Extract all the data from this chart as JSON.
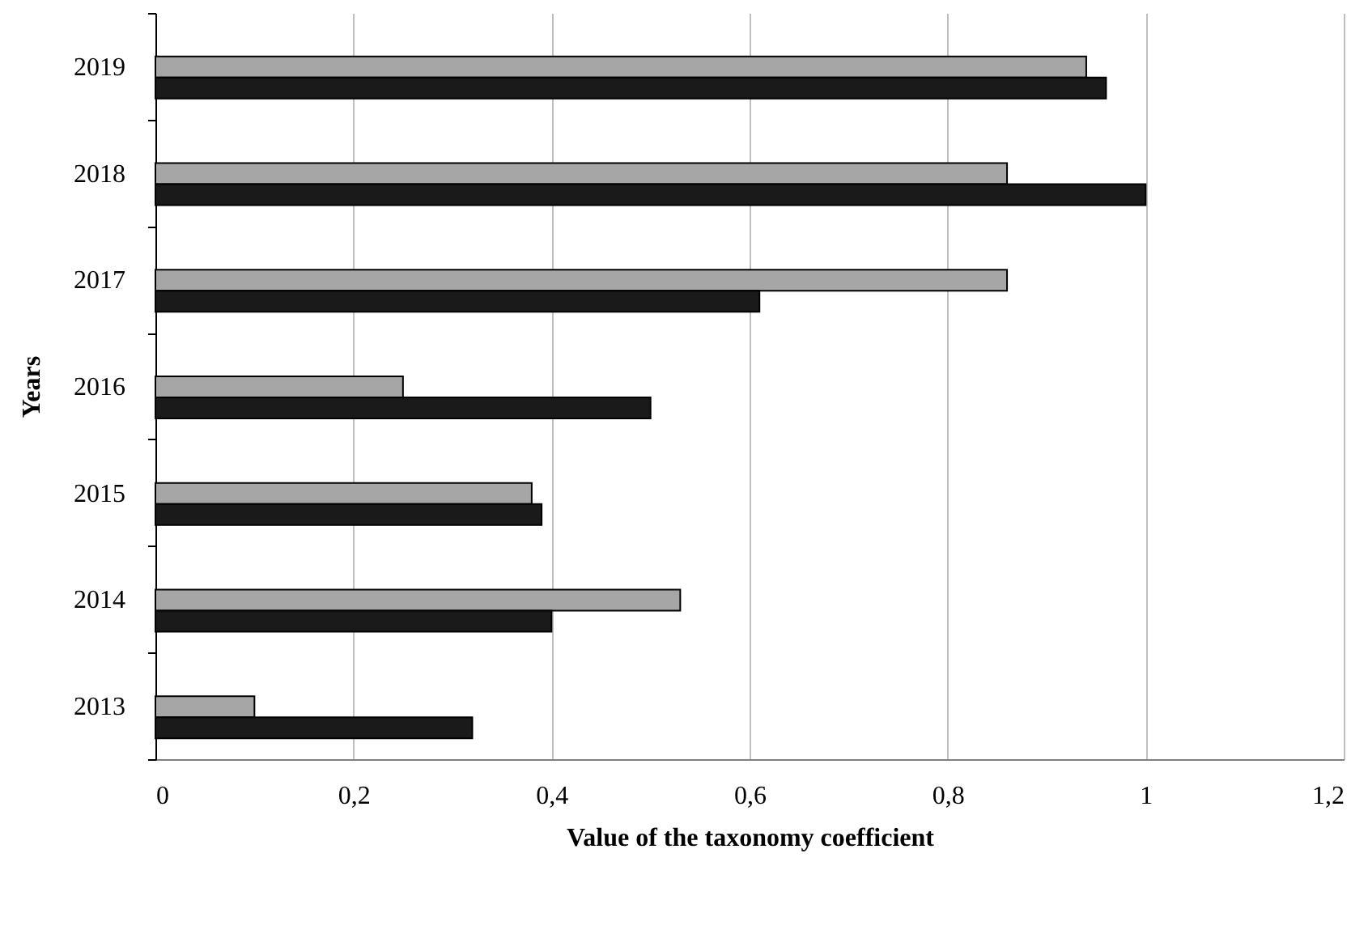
{
  "chart_data": {
    "type": "bar",
    "orientation": "horizontal",
    "xlabel": "Value of the taxonomy coefficient",
    "ylabel": "Years",
    "categories": [
      "2019",
      "2018",
      "2017",
      "2016",
      "2015",
      "2014",
      "2013"
    ],
    "series": [
      {
        "color": "#a6a6a6",
        "values": [
          0.94,
          0.86,
          0.86,
          0.25,
          0.38,
          0.53,
          0.1
        ]
      },
      {
        "color": "#1a1a1a",
        "values": [
          0.96,
          1.0,
          0.61,
          0.5,
          0.39,
          0.4,
          0.32
        ]
      }
    ],
    "xlim": [
      0,
      1.2
    ],
    "xticks": [
      0,
      {
        "value": 0.2,
        "label": "0,2"
      },
      {
        "value": 0.4,
        "label": "0,4"
      },
      {
        "value": 0.6,
        "label": "0,6"
      },
      {
        "value": 0.8,
        "label": "0,8"
      },
      1,
      {
        "value": 1.2,
        "label": "1,2"
      }
    ],
    "grid": "x"
  }
}
